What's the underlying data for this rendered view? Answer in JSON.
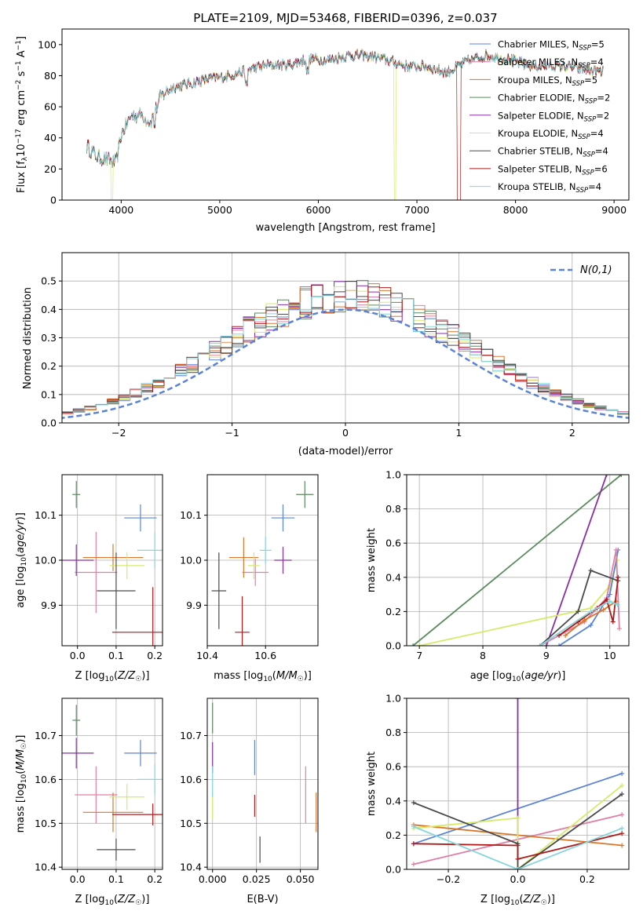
{
  "title": "PLATE=2109, MJD=53468, FIBERID=0396, z=0.037",
  "colors": {
    "Chabrier MILES": "#5b84d6",
    "Salpeter MILES": "#e07fa5",
    "Kroupa MILES": "#d9772b",
    "Chabrier ELODIE": "#5a8a5e",
    "Salpeter ELODIE": "#8a2ea8",
    "Kroupa ELODIE": "#d6ea6a",
    "Chabrier STELIB": "#4a4a4a",
    "Salpeter STELIB": "#b01818",
    "Kroupa STELIB": "#86d6dc",
    "normal": "#5b84d6"
  },
  "chart_data": [
    {
      "id": "spectrum",
      "type": "line",
      "xlabel": "wavelength [Angstrom, rest frame]",
      "ylabel": "Flux [f_λ 10^-17 erg cm^-2 s^-1 A^-1]",
      "xlim": [
        3400,
        9150
      ],
      "ylim": [
        0,
        110
      ],
      "xticks": [
        4000,
        5000,
        6000,
        7000,
        8000,
        9000
      ],
      "yticks": [
        0,
        20,
        40,
        60,
        80,
        100
      ],
      "legend_position": "top-right",
      "grid": false,
      "continuum": [
        [
          3650,
          35
        ],
        [
          3750,
          28
        ],
        [
          3850,
          26
        ],
        [
          3950,
          24
        ],
        [
          4000,
          42
        ],
        [
          4100,
          54
        ],
        [
          4200,
          55
        ],
        [
          4300,
          50
        ],
        [
          4400,
          66
        ],
        [
          4500,
          72
        ],
        [
          4700,
          75
        ],
        [
          4900,
          78
        ],
        [
          5100,
          80
        ],
        [
          5300,
          84
        ],
        [
          5500,
          87
        ],
        [
          5700,
          87
        ],
        [
          5900,
          91
        ],
        [
          6100,
          90
        ],
        [
          6300,
          93
        ],
        [
          6500,
          93
        ],
        [
          6700,
          90
        ],
        [
          6900,
          86
        ],
        [
          7100,
          86
        ],
        [
          7300,
          82
        ],
        [
          7500,
          89
        ],
        [
          7700,
          93
        ],
        [
          7900,
          91
        ],
        [
          8100,
          87
        ],
        [
          8300,
          86
        ],
        [
          8500,
          86
        ],
        [
          8700,
          84
        ],
        [
          8900,
          82
        ]
      ],
      "series": [
        {
          "name": "Chabrier MILES",
          "n_ssp": "5"
        },
        {
          "name": "Salpeter MILES",
          "n_ssp": "4"
        },
        {
          "name": "Kroupa MILES",
          "n_ssp": "5"
        },
        {
          "name": "Chabrier ELODIE",
          "n_ssp": "2"
        },
        {
          "name": "Salpeter ELODIE",
          "n_ssp": "2"
        },
        {
          "name": "Kroupa ELODIE",
          "n_ssp": "4"
        },
        {
          "name": "Chabrier STELIB",
          "n_ssp": "4"
        },
        {
          "name": "Salpeter STELIB",
          "n_ssp": "6"
        },
        {
          "name": "Kroupa STELIB",
          "n_ssp": "4"
        }
      ]
    },
    {
      "id": "residuals",
      "type": "line",
      "xlabel": "(data-model)/error",
      "ylabel": "Normed distribution",
      "xlim": [
        -2.5,
        2.5
      ],
      "ylim": [
        0,
        0.6
      ],
      "xticks": [
        -2,
        -1,
        0,
        1,
        2
      ],
      "yticks": [
        0.0,
        0.1,
        0.2,
        0.3,
        0.4,
        0.5
      ],
      "grid": true,
      "legend": "N(0,1)",
      "legend_position": "top-right",
      "bin_width": 0.1
    },
    {
      "id": "age-vs-Z",
      "type": "scatter",
      "xlabel": "Z [log10(Z/Z☉)]",
      "ylabel": "age [log10(age/yr)]",
      "xlim": [
        -0.04,
        0.22
      ],
      "ylim": [
        9.81,
        10.19
      ],
      "xticks": [
        0.0,
        0.1,
        0.2
      ],
      "yticks": [
        9.9,
        10.0,
        10.1
      ],
      "grid": true,
      "points": [
        {
          "series": "Chabrier MILES",
          "x": 0.163,
          "y": 10.094,
          "xerr": 0.042,
          "yerr": 0.03
        },
        {
          "series": "Salpeter MILES",
          "x": 0.048,
          "y": 9.973,
          "xerr": 0.055,
          "yerr": 0.09
        },
        {
          "series": "Kroupa MILES",
          "x": 0.092,
          "y": 10.006,
          "xerr": 0.078,
          "yerr": 0.03
        },
        {
          "series": "Chabrier ELODIE",
          "x": -0.003,
          "y": 10.146,
          "xerr": 0.01,
          "yerr": 0.03
        },
        {
          "series": "Salpeter ELODIE",
          "x": -0.003,
          "y": 10.0,
          "xerr": 0.045,
          "yerr": 0.035
        },
        {
          "series": "Kroupa ELODIE",
          "x": 0.128,
          "y": 9.988,
          "xerr": 0.045,
          "yerr": 0.03
        },
        {
          "series": "Chabrier STELIB",
          "x": 0.1,
          "y": 9.932,
          "xerr": 0.05,
          "yerr": 0.085
        },
        {
          "series": "Salpeter STELIB",
          "x": 0.195,
          "y": 9.84,
          "xerr": 0.105,
          "yerr": 0.1
        },
        {
          "series": "Kroupa STELIB",
          "x": 0.2,
          "y": 10.022,
          "xerr": 0.045,
          "yerr": 0.04
        }
      ]
    },
    {
      "id": "age-vs-mass",
      "type": "scatter",
      "xlabel": "mass [log10(M/M☉)]",
      "ylabel": "",
      "xlim": [
        10.4,
        10.78
      ],
      "ylim": [
        9.81,
        10.19
      ],
      "xticks": [
        10.4,
        10.6
      ],
      "yticks": [
        9.9,
        10.0,
        10.1
      ],
      "grid": true,
      "points": [
        {
          "series": "Chabrier MILES",
          "x": 10.66,
          "y": 10.094,
          "xerr": 0.04,
          "yerr": 0.03
        },
        {
          "series": "Salpeter MILES",
          "x": 10.565,
          "y": 9.973,
          "xerr": 0.045,
          "yerr": 0.03
        },
        {
          "series": "Kroupa MILES",
          "x": 10.525,
          "y": 10.006,
          "xerr": 0.05,
          "yerr": 0.045
        },
        {
          "series": "Chabrier ELODIE",
          "x": 10.735,
          "y": 10.146,
          "xerr": 0.03,
          "yerr": 0.03
        },
        {
          "series": "Salpeter ELODIE",
          "x": 10.66,
          "y": 10.0,
          "xerr": 0.03,
          "yerr": 0.03
        },
        {
          "series": "Kroupa ELODIE",
          "x": 10.56,
          "y": 9.988,
          "xerr": 0.02,
          "yerr": 0.03
        },
        {
          "series": "Chabrier STELIB",
          "x": 10.44,
          "y": 9.932,
          "xerr": 0.025,
          "yerr": 0.085
        },
        {
          "series": "Salpeter STELIB",
          "x": 10.52,
          "y": 9.84,
          "xerr": 0.025,
          "yerr": 0.08
        },
        {
          "series": "Kroupa STELIB",
          "x": 10.6,
          "y": 10.022,
          "xerr": 0.02,
          "yerr": 0.03
        }
      ]
    },
    {
      "id": "weight-vs-age",
      "type": "line",
      "xlabel": "age [log10(age/yr)]",
      "ylabel": "mass weight",
      "xlim": [
        6.8,
        10.3
      ],
      "ylim": [
        0,
        1.0
      ],
      "xticks": [
        7,
        8,
        9,
        10
      ],
      "yticks": [
        0.0,
        0.2,
        0.4,
        0.6,
        0.8,
        1.0
      ],
      "grid": true,
      "series": [
        {
          "name": "Chabrier ELODIE",
          "points": [
            [
              6.9,
              0.0
            ],
            [
              10.18,
              1.0
            ]
          ]
        },
        {
          "name": "Salpeter ELODIE",
          "points": [
            [
              9.0,
              0.0
            ],
            [
              9.95,
              1.0
            ]
          ]
        },
        {
          "name": "Kroupa ELODIE",
          "points": [
            [
              7.0,
              0.0
            ],
            [
              9.7,
              0.22
            ],
            [
              10.0,
              0.35
            ],
            [
              10.12,
              0.5
            ]
          ]
        },
        {
          "name": "Chabrier MILES",
          "points": [
            [
              9.2,
              0.0
            ],
            [
              9.7,
              0.12
            ],
            [
              10.0,
              0.3
            ],
            [
              10.13,
              0.56
            ]
          ]
        },
        {
          "name": "Salpeter MILES",
          "points": [
            [
              8.9,
              0.0
            ],
            [
              9.6,
              0.14
            ],
            [
              9.95,
              0.28
            ],
            [
              10.1,
              0.56
            ],
            [
              10.15,
              0.1
            ]
          ]
        },
        {
          "name": "Kroupa MILES",
          "points": [
            [
              9.3,
              0.06
            ],
            [
              9.6,
              0.15
            ],
            [
              9.9,
              0.21
            ],
            [
              10.1,
              0.26
            ]
          ]
        },
        {
          "name": "Chabrier STELIB",
          "points": [
            [
              8.9,
              0.0
            ],
            [
              9.5,
              0.2
            ],
            [
              9.7,
              0.44
            ],
            [
              10.13,
              0.38
            ]
          ]
        },
        {
          "name": "Salpeter STELIB",
          "points": [
            [
              9.2,
              0.06
            ],
            [
              9.5,
              0.14
            ],
            [
              9.8,
              0.22
            ],
            [
              9.95,
              0.27
            ],
            [
              10.05,
              0.14
            ],
            [
              10.13,
              0.4
            ]
          ]
        },
        {
          "name": "Kroupa STELIB",
          "points": [
            [
              8.9,
              0.0
            ],
            [
              9.7,
              0.2
            ],
            [
              10.0,
              0.26
            ],
            [
              10.12,
              0.24
            ]
          ]
        }
      ]
    },
    {
      "id": "mass-vs-Z",
      "type": "scatter",
      "xlabel": "Z [log10(Z/Z☉)]",
      "ylabel": "mass [log10(M/M☉)]",
      "xlim": [
        -0.04,
        0.22
      ],
      "ylim": [
        10.395,
        10.785
      ],
      "xticks": [
        0.0,
        0.1,
        0.2
      ],
      "yticks": [
        10.4,
        10.5,
        10.6,
        10.7
      ],
      "grid": true,
      "points": [
        {
          "series": "Chabrier MILES",
          "x": 0.163,
          "y": 10.66,
          "xerr": 0.042,
          "yerr": 0.03
        },
        {
          "series": "Salpeter MILES",
          "x": 0.048,
          "y": 10.565,
          "xerr": 0.055,
          "yerr": 0.065
        },
        {
          "series": "Kroupa MILES",
          "x": 0.092,
          "y": 10.525,
          "xerr": 0.078,
          "yerr": 0.045
        },
        {
          "series": "Chabrier ELODIE",
          "x": -0.003,
          "y": 10.735,
          "xerr": 0.01,
          "yerr": 0.035
        },
        {
          "series": "Salpeter ELODIE",
          "x": -0.003,
          "y": 10.66,
          "xerr": 0.045,
          "yerr": 0.035
        },
        {
          "series": "Kroupa ELODIE",
          "x": 0.128,
          "y": 10.56,
          "xerr": 0.045,
          "yerr": 0.03
        },
        {
          "series": "Chabrier STELIB",
          "x": 0.1,
          "y": 10.44,
          "xerr": 0.05,
          "yerr": 0.025
        },
        {
          "series": "Salpeter STELIB",
          "x": 0.195,
          "y": 10.52,
          "xerr": 0.105,
          "yerr": 0.025
        },
        {
          "series": "Kroupa STELIB",
          "x": 0.2,
          "y": 10.6,
          "xerr": 0.045,
          "yerr": 0.035
        }
      ]
    },
    {
      "id": "mass-vs-ebv",
      "type": "scatter",
      "xlabel": "E(B-V)",
      "ylabel": "",
      "xlim": [
        -0.003,
        0.06
      ],
      "ylim": [
        10.395,
        10.785
      ],
      "xticks": [
        0.0,
        0.025,
        0.05
      ],
      "yticks": [
        10.4,
        10.5,
        10.6,
        10.7
      ],
      "grid": true,
      "points": [
        {
          "series": "Chabrier MILES",
          "x": 0.024,
          "y": 10.65,
          "xerr": 0,
          "yerr": 0.04
        },
        {
          "series": "Salpeter MILES",
          "x": 0.053,
          "y": 10.565,
          "xerr": 0,
          "yerr": 0.065
        },
        {
          "series": "Kroupa MILES",
          "x": 0.059,
          "y": 10.525,
          "xerr": 0,
          "yerr": 0.045
        },
        {
          "series": "Chabrier ELODIE",
          "x": 0.0,
          "y": 10.74,
          "xerr": 0,
          "yerr": 0.035
        },
        {
          "series": "Salpeter ELODIE",
          "x": 0.0,
          "y": 10.65,
          "xerr": 0,
          "yerr": 0.035
        },
        {
          "series": "Kroupa ELODIE",
          "x": 0.0,
          "y": 10.54,
          "xerr": 0,
          "yerr": 0.03
        },
        {
          "series": "Chabrier STELIB",
          "x": 0.027,
          "y": 10.44,
          "xerr": 0,
          "yerr": 0.03
        },
        {
          "series": "Salpeter STELIB",
          "x": 0.024,
          "y": 10.54,
          "xerr": 0,
          "yerr": 0.025
        },
        {
          "series": "Kroupa STELIB",
          "x": 0.0,
          "y": 10.595,
          "xerr": 0,
          "yerr": 0.035
        }
      ]
    },
    {
      "id": "weight-vs-Z",
      "type": "line",
      "xlabel": "Z [log10(Z/Z☉)]",
      "ylabel": "mass weight",
      "xlim": [
        -0.32,
        0.32
      ],
      "ylim": [
        0,
        1.0
      ],
      "xticks": [
        -0.2,
        0.0,
        0.2
      ],
      "yticks": [
        0.0,
        0.2,
        0.4,
        0.6,
        0.8,
        1.0
      ],
      "grid": true,
      "series": [
        {
          "name": "Chabrier MILES",
          "points": [
            [
              -0.3,
              0.15
            ],
            [
              0.3,
              0.56
            ]
          ]
        },
        {
          "name": "Salpeter MILES",
          "points": [
            [
              -0.3,
              0.03
            ],
            [
              0.3,
              0.32
            ]
          ]
        },
        {
          "name": "Kroupa MILES",
          "points": [
            [
              -0.3,
              0.26
            ],
            [
              0.3,
              0.14
            ]
          ]
        },
        {
          "name": "Salpeter ELODIE",
          "points": [
            [
              0.0,
              0.0
            ],
            [
              0.0,
              1.0
            ]
          ]
        },
        {
          "name": "Kroupa ELODIE",
          "points": [
            [
              -0.3,
              0.24
            ],
            [
              0.0,
              0.3
            ],
            [
              0.0,
              0.0
            ],
            [
              0.3,
              0.49
            ]
          ]
        },
        {
          "name": "Chabrier STELIB",
          "points": [
            [
              -0.3,
              0.39
            ],
            [
              0.0,
              0.15
            ],
            [
              0.0,
              0.0
            ],
            [
              0.3,
              0.44
            ]
          ]
        },
        {
          "name": "Salpeter STELIB",
          "points": [
            [
              -0.3,
              0.15
            ],
            [
              0.0,
              0.14
            ],
            [
              0.0,
              0.06
            ],
            [
              0.3,
              0.21
            ]
          ]
        },
        {
          "name": "Kroupa STELIB",
          "points": [
            [
              -0.3,
              0.25
            ],
            [
              0.0,
              0.0
            ],
            [
              0.3,
              0.24
            ]
          ]
        }
      ]
    }
  ]
}
